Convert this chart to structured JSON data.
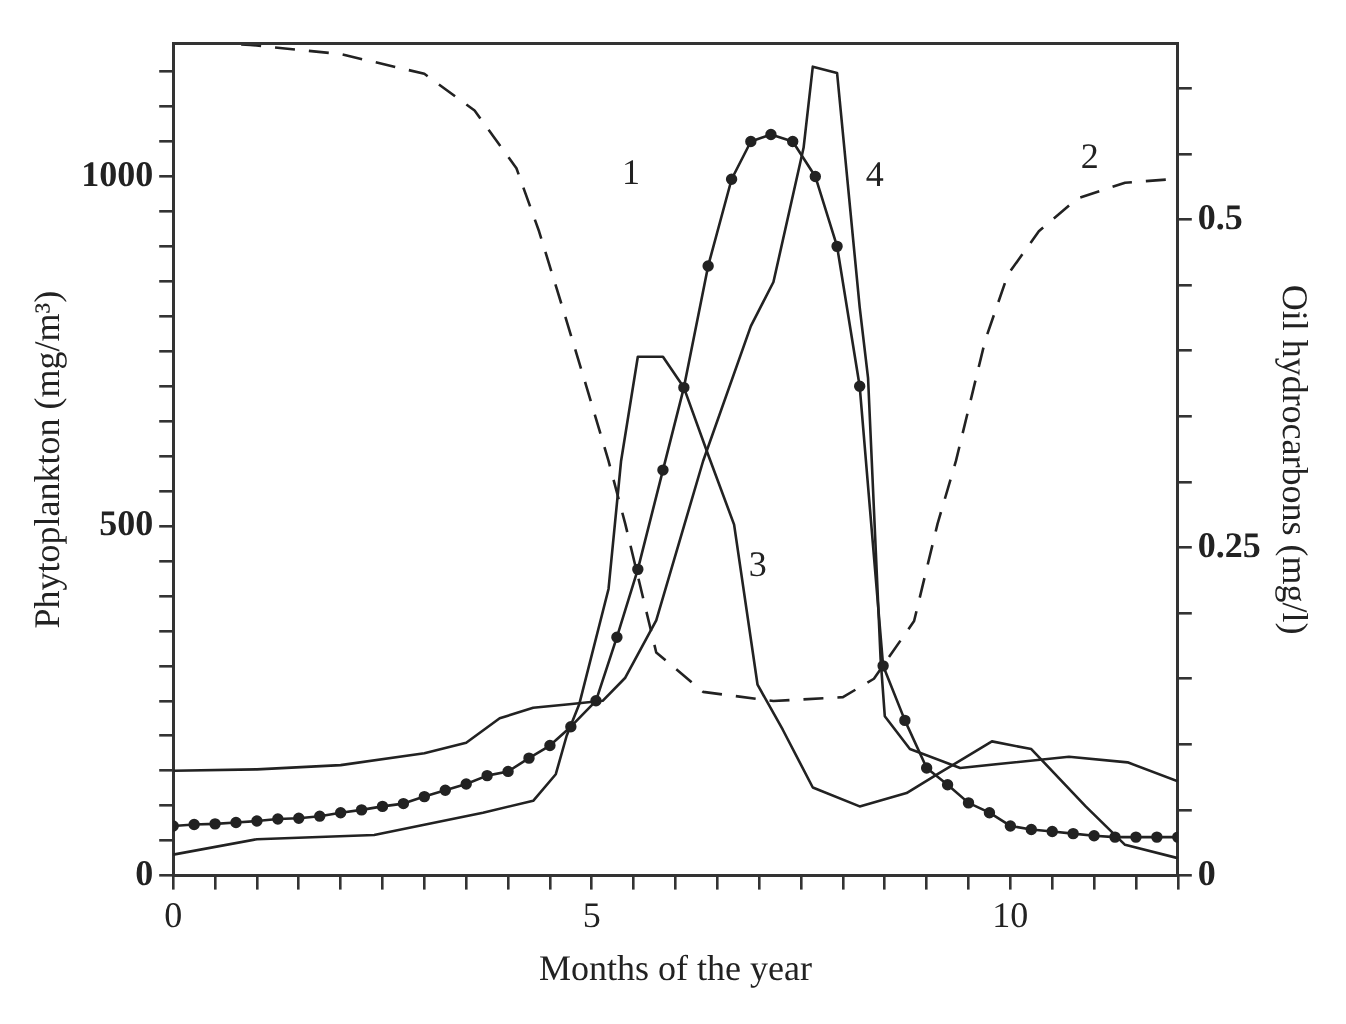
{
  "chart_data": {
    "type": "line",
    "xlabel": "Months of the year",
    "ylabel": "Phytoplankton (mg/m³)",
    "y2label": "Oil hydrocarbons (mg/l)",
    "xlim": [
      0,
      12
    ],
    "ylim": [
      0,
      1190
    ],
    "y2lim": [
      0,
      0.634
    ],
    "xticks": [
      0,
      {
        "value": 0.5,
        "label": null
      },
      {
        "value": 1,
        "label": null
      },
      {
        "value": 1.5,
        "label": null
      },
      {
        "value": 2,
        "label": null
      },
      {
        "value": 2.5,
        "label": null
      },
      {
        "value": 3,
        "label": null
      },
      {
        "value": 3.5,
        "label": null
      },
      {
        "value": 4,
        "label": null
      },
      {
        "value": 4.5,
        "label": null
      },
      5,
      {
        "value": 5.5,
        "label": null
      },
      {
        "value": 6,
        "label": null
      },
      {
        "value": 6.5,
        "label": null
      },
      {
        "value": 7,
        "label": null
      },
      {
        "value": 7.5,
        "label": null
      },
      {
        "value": 8,
        "label": null
      },
      {
        "value": 8.5,
        "label": null
      },
      {
        "value": 9,
        "label": null
      },
      {
        "value": 9.5,
        "label": null
      },
      10,
      {
        "value": 10.5,
        "label": null
      },
      {
        "value": 11,
        "label": null
      },
      {
        "value": 11.5,
        "label": null
      },
      {
        "value": 12,
        "label": null
      }
    ],
    "yticks": [
      0,
      {
        "value": 50,
        "label": null
      },
      {
        "value": 100,
        "label": null
      },
      {
        "value": 150,
        "label": null
      },
      {
        "value": 200,
        "label": null
      },
      {
        "value": 250,
        "label": null
      },
      {
        "value": 300,
        "label": null
      },
      {
        "value": 350,
        "label": null
      },
      {
        "value": 400,
        "label": null
      },
      {
        "value": 450,
        "label": null
      },
      500,
      {
        "value": 550,
        "label": null
      },
      {
        "value": 600,
        "label": null
      },
      {
        "value": 650,
        "label": null
      },
      {
        "value": 700,
        "label": null
      },
      {
        "value": 750,
        "label": null
      },
      {
        "value": 800,
        "label": null
      },
      {
        "value": 850,
        "label": null
      },
      {
        "value": 900,
        "label": null
      },
      {
        "value": 950,
        "label": null
      },
      1000,
      {
        "value": 1050,
        "label": null
      },
      {
        "value": 1100,
        "label": null
      },
      {
        "value": 1150,
        "label": null
      }
    ],
    "y2ticks": [
      0,
      {
        "value": 0.05,
        "label": null
      },
      {
        "value": 0.1,
        "label": null
      },
      {
        "value": 0.15,
        "label": null
      },
      {
        "value": 0.2,
        "label": null
      },
      0.25,
      {
        "value": 0.3,
        "label": null
      },
      {
        "value": 0.35,
        "label": null
      },
      {
        "value": 0.4,
        "label": null
      },
      {
        "value": 0.45,
        "label": null
      },
      0.5,
      {
        "value": 0.55,
        "label": null
      },
      {
        "value": 0.6,
        "label": null
      }
    ],
    "grid": false,
    "legend": false,
    "series": [
      {
        "name": "1",
        "color": "#222222",
        "marker": "circle",
        "line_style": "solid",
        "x": [
          0,
          0.25,
          0.5,
          0.75,
          1,
          1.25,
          1.5,
          1.75,
          2,
          2.25,
          2.5,
          2.75,
          3,
          3.25,
          3.5,
          3.75,
          4,
          4.25,
          4.5,
          4.75,
          5.05,
          5.3,
          5.55,
          5.85,
          6.1,
          6.39,
          6.67,
          6.9,
          7.14,
          7.4,
          7.67,
          7.93,
          8.2,
          8.48,
          8.74,
          9,
          9.25,
          9.5,
          9.75,
          10,
          10.25,
          10.5,
          10.75,
          11,
          11.25,
          11.5,
          11.75,
          12
        ],
        "values": [
          71,
          73,
          74,
          76,
          78,
          81,
          82,
          85,
          90,
          94,
          99,
          103,
          113,
          122,
          131,
          143,
          149,
          168,
          186,
          213,
          250,
          341,
          438,
          580,
          698,
          872,
          996,
          1050,
          1060,
          1050,
          1000,
          900,
          700,
          300,
          222,
          154,
          130,
          104,
          90,
          71,
          66,
          63,
          60,
          57,
          55,
          55,
          55,
          55
        ]
      },
      {
        "name": "2",
        "color": "#222222",
        "marker": "none",
        "line_style": "dashed",
        "axis": "y2",
        "x": [
          0,
          0.6,
          0.92,
          2,
          3,
          3.6,
          4.1,
          4.37,
          4.65,
          4.93,
          5.2,
          5.4,
          5.77,
          6.33,
          7.17,
          8,
          8.37,
          8.85,
          9.13,
          9.35,
          9.7,
          9.97,
          10.34,
          10.8,
          11.37,
          12
        ],
        "values": [
          0.634,
          0.634,
          0.633,
          0.626,
          0.611,
          0.583,
          0.539,
          0.491,
          0.433,
          0.374,
          0.316,
          0.268,
          0.17,
          0.14,
          0.133,
          0.136,
          0.15,
          0.194,
          0.268,
          0.316,
          0.408,
          0.458,
          0.491,
          0.516,
          0.528,
          0.531
        ]
      },
      {
        "name": "3",
        "color": "#222222",
        "marker": "none",
        "line_style": "solid",
        "x": [
          0,
          1,
          2.4,
          3.7,
          4.3,
          4.57,
          4.7,
          4.85,
          5.2,
          5.35,
          5.55,
          5.85,
          6.1,
          6.39,
          6.7,
          6.98,
          7.28,
          7.64,
          8.2,
          8.76,
          9.13,
          9.78,
          10.25,
          10.9,
          11.37,
          12
        ],
        "values": [
          30,
          52,
          58,
          90,
          107,
          145,
          200,
          245,
          410,
          593,
          742,
          742,
          698,
          602,
          502,
          273,
          209,
          126,
          99,
          118,
          145,
          192,
          181,
          99,
          44,
          25
        ]
      },
      {
        "name": "4",
        "color": "#222222",
        "marker": "none",
        "line_style": "solid",
        "x": [
          0,
          1,
          2,
          3,
          3.5,
          3.9,
          4.3,
          4.73,
          5.13,
          5.4,
          5.77,
          6.33,
          6.9,
          7.17,
          7.53,
          7.64,
          7.93,
          8.2,
          8.3,
          8.45,
          8.5,
          8.8,
          9.4,
          10.7,
          11.4,
          12
        ],
        "values": [
          150,
          152,
          158,
          175,
          190,
          225,
          240,
          245,
          250,
          283,
          365,
          593,
          786,
          849,
          1041,
          1157,
          1148,
          813,
          712,
          310,
          228,
          181,
          154,
          170,
          162,
          135
        ]
      }
    ]
  }
}
